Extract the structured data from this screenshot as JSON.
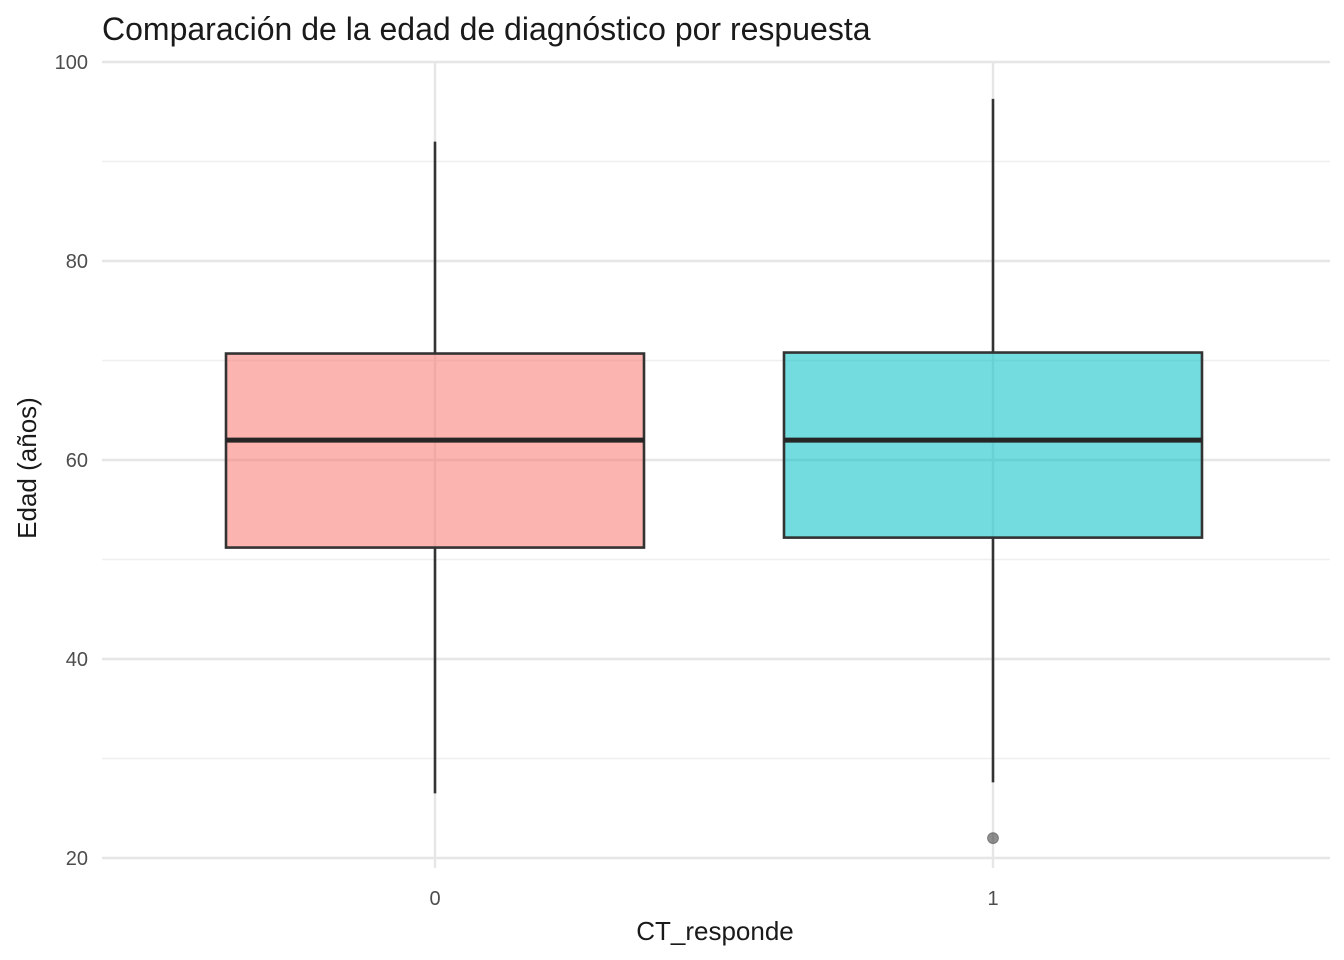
{
  "chart_data": {
    "type": "boxplot",
    "title": "Comparación de la edad de diagnóstico por respuesta",
    "xlabel": "CT_responde",
    "ylabel": "Edad (años)",
    "ylim": [
      19,
      100
    ],
    "y_ticks": [
      "20",
      "40",
      "60",
      "80",
      "100"
    ],
    "y_tick_values": [
      20,
      40,
      60,
      80,
      100
    ],
    "grid": true,
    "legend": "none",
    "categories": [
      "0",
      "1"
    ],
    "boxes": [
      {
        "category": "0",
        "min": 26.5,
        "q1": 51.2,
        "median": 62,
        "q3": 70.7,
        "max": 92,
        "outliers": [],
        "color": "#F8766D"
      },
      {
        "category": "1",
        "min": 27.6,
        "q1": 52.2,
        "median": 62,
        "q3": 70.8,
        "max": 96.3,
        "outliers": [
          22
        ],
        "color": "#00BFC4"
      }
    ]
  }
}
